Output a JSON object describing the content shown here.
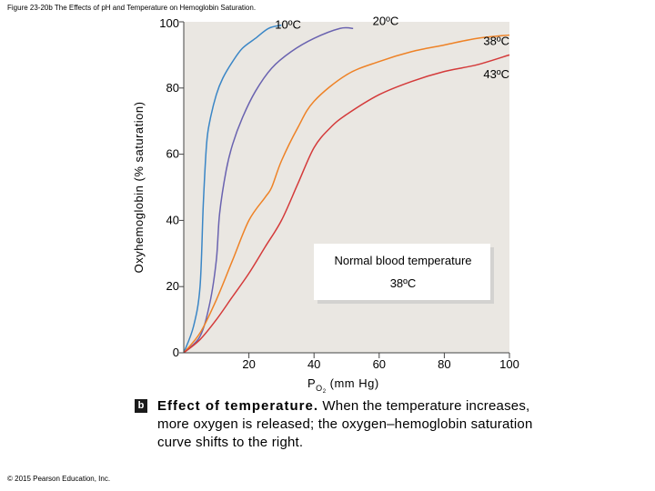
{
  "figure_title": "Figure 23-20b The Effects of pH and Temperature on Hemoglobin Saturation.",
  "copyright": "© 2015 Pearson Education, Inc.",
  "caption": {
    "badge": "b",
    "bold": "Effect of temperature.",
    "text": " When the temperature increases, more oxygen is released; the oxygen–hemoglobin saturation curve shifts to the right."
  },
  "annotation_box": {
    "line1": "Normal blood temperature",
    "line2": "38ºC"
  },
  "colors": {
    "plot_bg": "#eae7e2",
    "curve_10": "#3a86c6",
    "curve_20": "#6a63b0",
    "curve_38": "#ee8226",
    "curve_43": "#d43a3a"
  },
  "chart_data": {
    "type": "line",
    "title": "",
    "xlabel": "P",
    "xlabel_sub": "O",
    "xlabel_sub2": "2",
    "xlabel_unit": " (mm Hg)",
    "ylabel": "Oxyhemoglobin (% saturation)",
    "xlim": [
      0,
      100
    ],
    "ylim": [
      0,
      100
    ],
    "x_ticks": [
      "20",
      "40",
      "60",
      "80",
      "100"
    ],
    "y_ticks": [
      "0",
      "20",
      "40",
      "60",
      "80",
      "100"
    ],
    "grid": false,
    "series": [
      {
        "name": "10ºC",
        "color_key": "curve_10",
        "x": [
          0,
          3,
          5,
          6,
          7,
          8,
          10,
          12,
          15,
          18,
          22,
          26,
          30
        ],
        "y": [
          0,
          8,
          20,
          45,
          63,
          70,
          78,
          83,
          88,
          92,
          95,
          98,
          99
        ]
      },
      {
        "name": "20ºC",
        "color_key": "curve_20",
        "x": [
          0,
          5,
          8,
          10,
          11,
          13,
          15,
          18,
          22,
          27,
          33,
          40,
          48,
          52
        ],
        "y": [
          0,
          5,
          15,
          28,
          42,
          55,
          63,
          71,
          79,
          86,
          91,
          95,
          98,
          98
        ]
      },
      {
        "name": "38ºC",
        "color_key": "curve_38",
        "x": [
          0,
          5,
          10,
          15,
          20,
          25,
          27,
          30,
          35,
          40,
          50,
          60,
          70,
          80,
          90,
          100
        ],
        "y": [
          0,
          6,
          16,
          28,
          40,
          47,
          50,
          58,
          68,
          76,
          84,
          88,
          91,
          93,
          95,
          96
        ]
      },
      {
        "name": "43ºC",
        "color_key": "curve_43",
        "x": [
          0,
          5,
          10,
          15,
          20,
          25,
          30,
          35,
          40,
          45,
          50,
          60,
          70,
          80,
          90,
          100
        ],
        "y": [
          0,
          4,
          10,
          17,
          24,
          32,
          40,
          51,
          62,
          68,
          72,
          78,
          82,
          85,
          87,
          90
        ]
      }
    ],
    "curve_labels": [
      {
        "text": "10ºC",
        "at": [
          28,
          98
        ]
      },
      {
        "text": "20ºC",
        "at": [
          58,
          99
        ]
      },
      {
        "text": "38ºC",
        "at": [
          92,
          93
        ]
      },
      {
        "text": "43ºC",
        "at": [
          92,
          83
        ]
      }
    ]
  }
}
